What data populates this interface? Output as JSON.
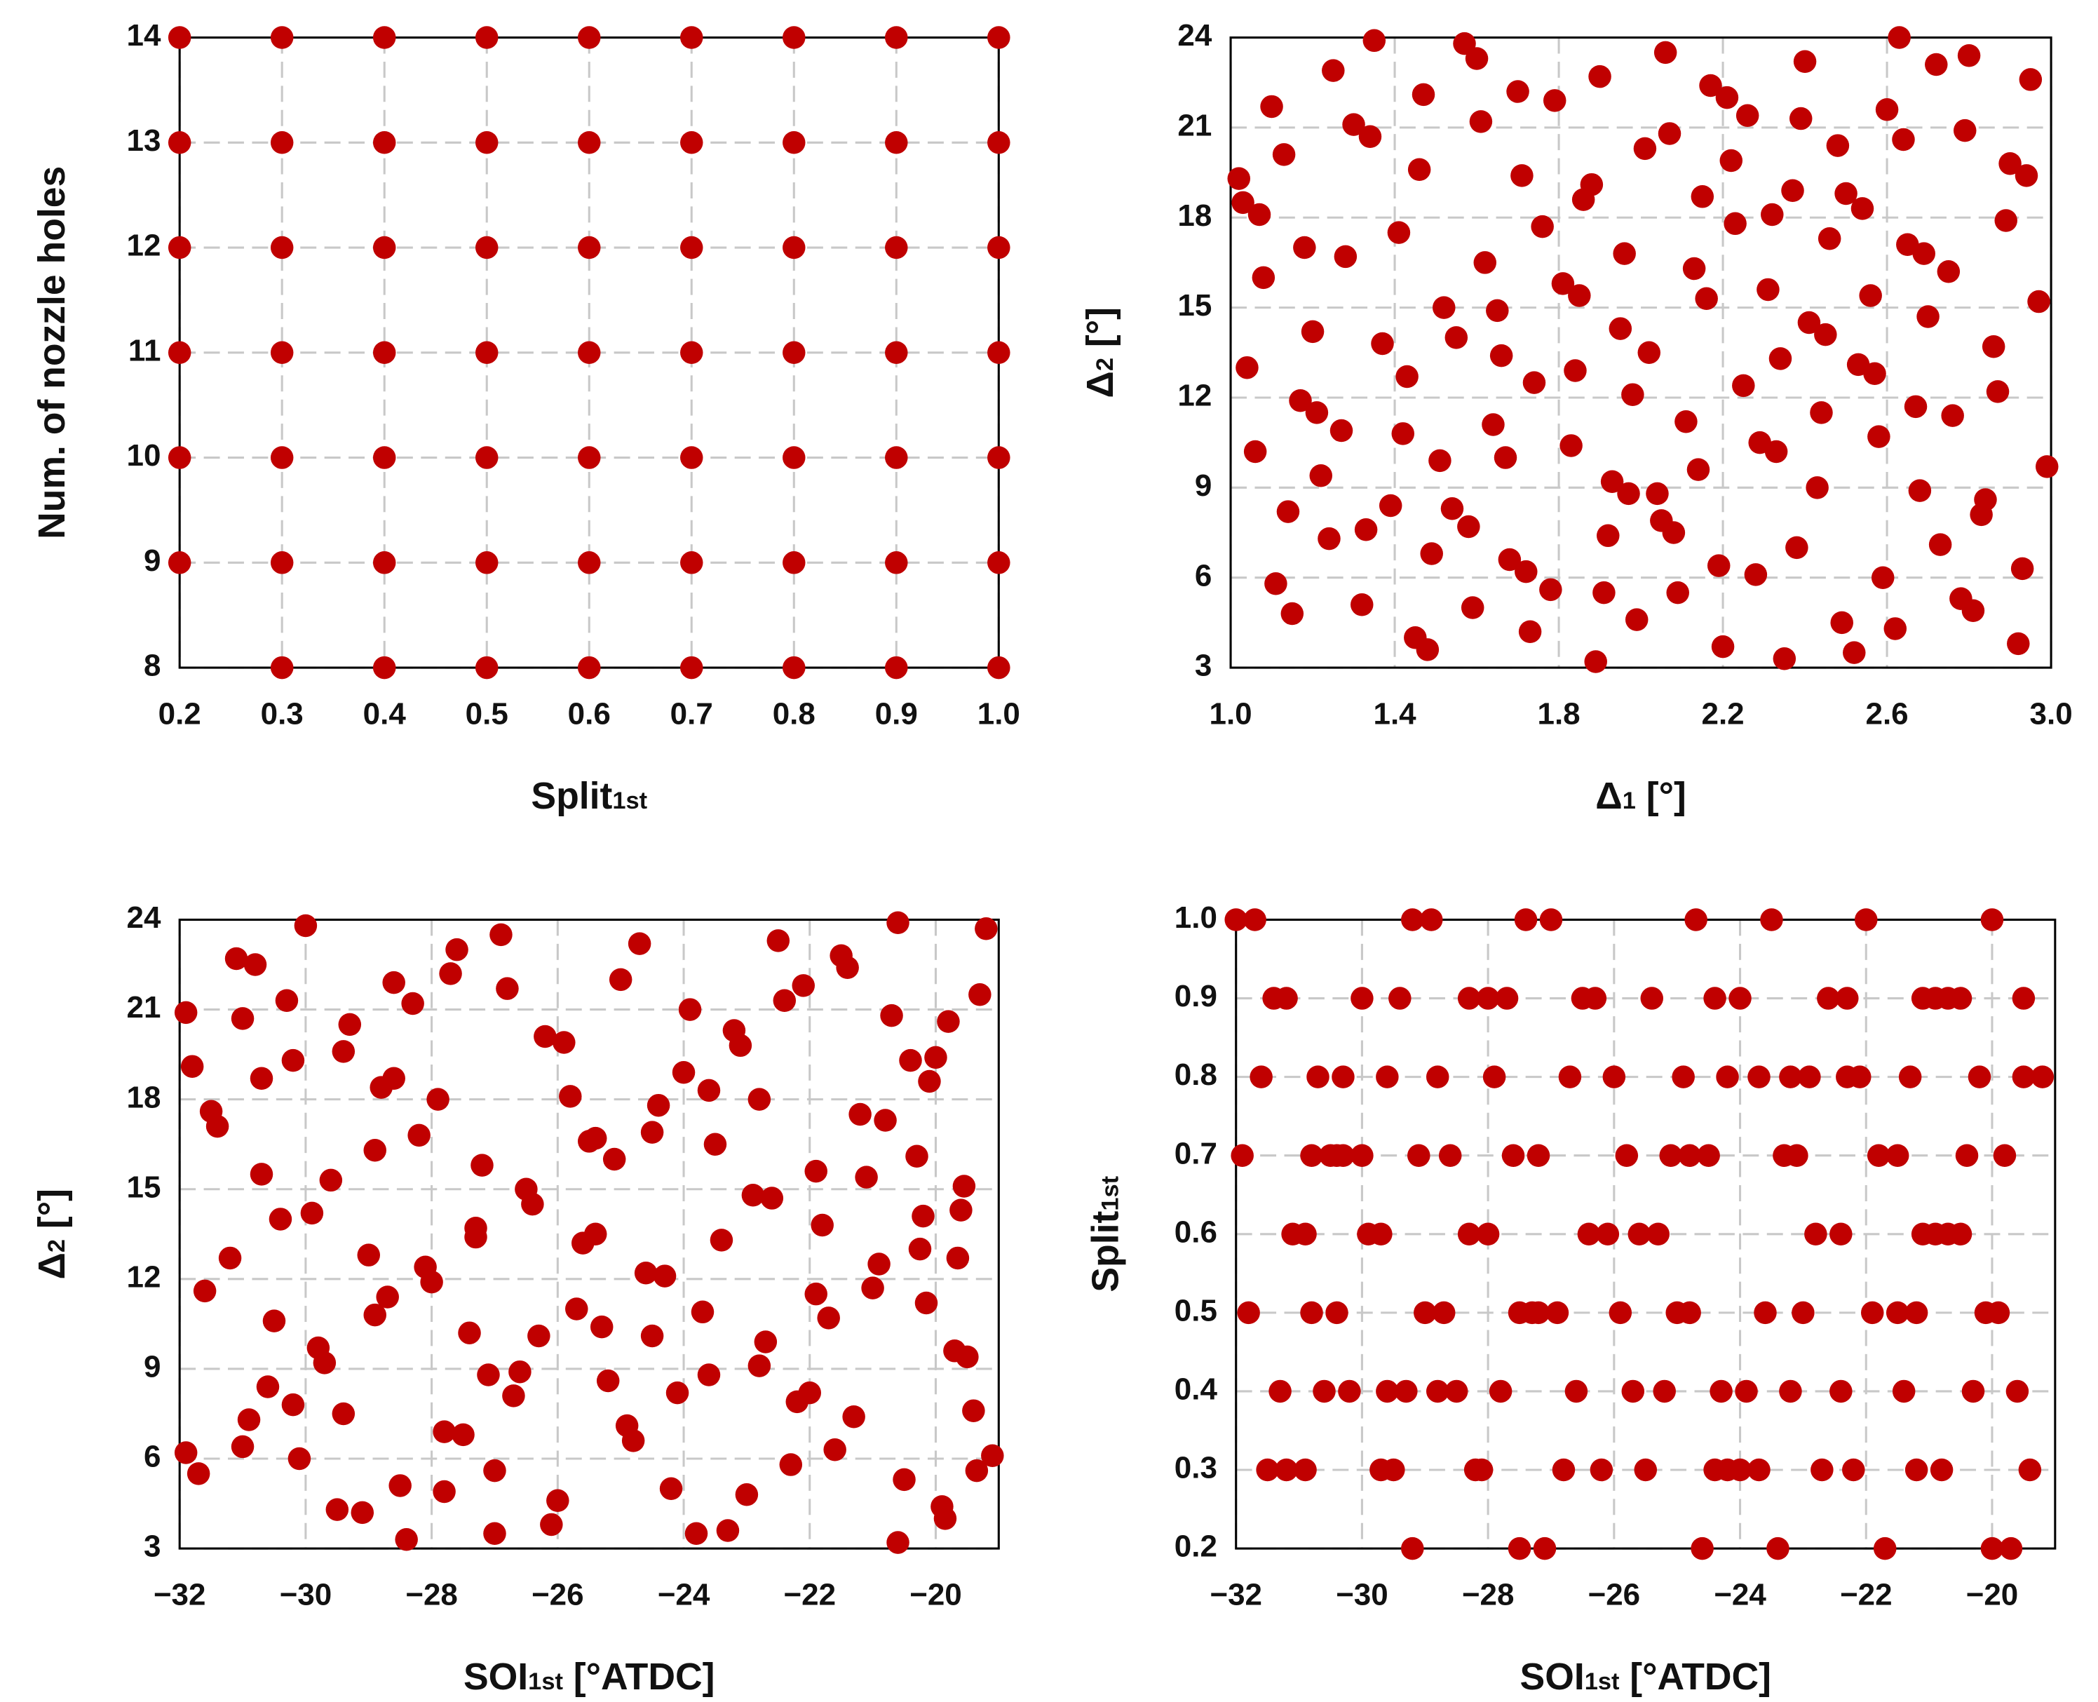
{
  "chart_data": [
    {
      "type": "scatter",
      "color": "#c00000",
      "grid": true,
      "xlabel": [
        {
          "text": "Split"
        },
        {
          "text": "1st",
          "sub": true
        }
      ],
      "ylabel": [
        {
          "text": "Num. of nozzle holes"
        }
      ],
      "xlim": [
        0.2,
        1
      ],
      "ylim": [
        8,
        14
      ],
      "xticks": [
        0.2,
        0.3,
        0.4,
        0.5,
        0.6,
        0.7,
        0.8,
        0.9,
        {
          "value": 1,
          "label": "1.0"
        }
      ],
      "yticks": [
        8,
        9,
        10,
        11,
        12,
        13,
        14
      ],
      "x": [
        0.2,
        0.2,
        0.2,
        0.2,
        0.2,
        0.2,
        0.3,
        0.3,
        0.3,
        0.3,
        0.3,
        0.3,
        0.3,
        0.4,
        0.4,
        0.4,
        0.4,
        0.4,
        0.4,
        0.4,
        0.5,
        0.5,
        0.5,
        0.5,
        0.5,
        0.5,
        0.5,
        0.6,
        0.6,
        0.6,
        0.6,
        0.6,
        0.6,
        0.6,
        0.7,
        0.7,
        0.7,
        0.7,
        0.7,
        0.7,
        0.7,
        0.8,
        0.8,
        0.8,
        0.8,
        0.8,
        0.8,
        0.8,
        0.9,
        0.9,
        0.9,
        0.9,
        0.9,
        0.9,
        0.9,
        1,
        1,
        1,
        1,
        1,
        1,
        1
      ],
      "y": [
        9,
        10,
        11,
        12,
        13,
        14,
        8,
        9,
        10,
        11,
        12,
        13,
        14,
        8,
        9,
        10,
        11,
        12,
        13,
        14,
        8,
        9,
        10,
        11,
        12,
        13,
        14,
        8,
        9,
        10,
        11,
        12,
        13,
        14,
        8,
        9,
        10,
        11,
        12,
        13,
        14,
        8,
        9,
        10,
        11,
        12,
        13,
        14,
        8,
        9,
        10,
        11,
        12,
        13,
        14,
        8,
        9,
        10,
        11,
        12,
        13,
        14
      ]
    },
    {
      "type": "scatter",
      "color": "#c00000",
      "grid": true,
      "xlabel": [
        {
          "text": "Δ"
        },
        {
          "text": "1",
          "sub": true
        },
        {
          "text": " [°]"
        }
      ],
      "ylabel": [
        {
          "text": "Δ"
        },
        {
          "text": "2",
          "sub": true
        },
        {
          "text": " [°]"
        }
      ],
      "xlim": [
        1,
        3
      ],
      "ylim": [
        3,
        24
      ],
      "xticks": [
        {
          "value": 1,
          "label": "1.0"
        },
        1.4,
        1.8,
        2.2,
        2.6,
        {
          "value": 3,
          "label": "3.0"
        }
      ],
      "yticks": [
        3,
        6,
        9,
        12,
        15,
        18,
        21,
        24
      ],
      "x": [
        1.02,
        1.03,
        1.04,
        1.06,
        1.07,
        1.08,
        1.1,
        1.11,
        1.13,
        1.14,
        1.15,
        1.17,
        1.18,
        1.2,
        1.21,
        1.22,
        1.24,
        1.25,
        1.27,
        1.28,
        1.3,
        1.32,
        1.33,
        1.34,
        1.35,
        1.37,
        1.39,
        1.41,
        1.42,
        1.43,
        1.45,
        1.46,
        1.47,
        1.48,
        1.49,
        1.51,
        1.52,
        1.54,
        1.55,
        1.57,
        1.58,
        1.59,
        1.6,
        1.61,
        1.62,
        1.64,
        1.65,
        1.66,
        1.67,
        1.68,
        1.7,
        1.71,
        1.72,
        1.73,
        1.74,
        1.76,
        1.78,
        1.79,
        1.81,
        1.83,
        1.84,
        1.85,
        1.86,
        1.88,
        1.89,
        1.9,
        1.91,
        1.92,
        1.93,
        1.95,
        1.96,
        1.97,
        1.98,
        1.99,
        2.01,
        2.02,
        2.04,
        2.05,
        2.06,
        2.07,
        2.08,
        2.09,
        2.11,
        2.13,
        2.14,
        2.15,
        2.16,
        2.17,
        2.19,
        2.2,
        2.21,
        2.22,
        2.23,
        2.25,
        2.26,
        2.28,
        2.29,
        2.31,
        2.32,
        2.33,
        2.34,
        2.35,
        2.37,
        2.38,
        2.39,
        2.4,
        2.41,
        2.43,
        2.44,
        2.45,
        2.46,
        2.48,
        2.49,
        2.5,
        2.52,
        2.53,
        2.54,
        2.56,
        2.57,
        2.58,
        2.59,
        2.6,
        2.62,
        2.63,
        2.64,
        2.65,
        2.67,
        2.68,
        2.69,
        2.7,
        2.72,
        2.73,
        2.75,
        2.76,
        2.78,
        2.79,
        2.8,
        2.81,
        2.83,
        2.84,
        2.86,
        2.87,
        2.89,
        2.9,
        2.92,
        2.93,
        2.94,
        2.95,
        2.97,
        2.99
      ],
      "y": [
        19.3,
        18.5,
        13.0,
        10.2,
        18.1,
        16.0,
        21.7,
        5.8,
        20.1,
        8.2,
        4.8,
        11.9,
        17.0,
        14.2,
        11.5,
        9.4,
        7.3,
        22.9,
        10.9,
        16.7,
        21.1,
        5.1,
        7.6,
        20.7,
        23.9,
        13.8,
        8.4,
        17.5,
        10.8,
        12.7,
        4.0,
        19.6,
        22.1,
        3.6,
        6.8,
        9.9,
        15.0,
        8.3,
        14.0,
        23.8,
        7.7,
        5.0,
        23.3,
        21.2,
        16.5,
        11.1,
        14.9,
        13.4,
        10.0,
        6.6,
        22.2,
        19.4,
        6.2,
        4.2,
        12.5,
        17.7,
        5.6,
        21.9,
        15.8,
        10.4,
        12.9,
        15.4,
        18.6,
        19.1,
        3.2,
        22.7,
        5.5,
        7.4,
        9.2,
        14.3,
        16.8,
        8.8,
        12.1,
        4.6,
        20.3,
        13.5,
        8.8,
        7.9,
        23.5,
        20.8,
        7.5,
        5.5,
        11.2,
        16.3,
        9.6,
        18.7,
        15.3,
        22.4,
        6.4,
        3.7,
        22.0,
        19.9,
        17.8,
        12.4,
        21.4,
        6.1,
        10.5,
        15.6,
        18.1,
        10.2,
        13.3,
        3.3,
        18.9,
        7.0,
        21.3,
        23.2,
        14.5,
        9.0,
        11.5,
        14.1,
        17.3,
        20.4,
        4.5,
        18.8,
        3.5,
        13.1,
        18.3,
        15.4,
        12.8,
        10.7,
        6.0,
        21.6,
        4.3,
        24.0,
        20.6,
        17.1,
        11.7,
        8.9,
        16.8,
        14.7,
        23.1,
        7.1,
        16.2,
        11.4,
        5.3,
        20.9,
        23.4,
        4.9,
        8.1,
        8.6,
        13.7,
        12.2,
        17.9,
        19.8,
        3.8,
        6.3,
        19.4,
        22.6,
        15.2,
        9.7
      ]
    },
    {
      "type": "scatter",
      "color": "#c00000",
      "grid": true,
      "xlabel": [
        {
          "text": "SOI"
        },
        {
          "text": "1st",
          "sub": true
        },
        {
          "text": " [°ATDC]"
        }
      ],
      "ylabel": [
        {
          "text": "Δ"
        },
        {
          "text": "2",
          "sub": true
        },
        {
          "text": " [°]"
        }
      ],
      "xlim": [
        -32,
        -19
      ],
      "ylim": [
        3,
        24
      ],
      "xticks": [
        {
          "value": -32,
          "label": "−32"
        },
        {
          "value": -30,
          "label": "−30"
        },
        {
          "value": -28,
          "label": "−28"
        },
        {
          "value": -26,
          "label": "−26"
        },
        {
          "value": -24,
          "label": "−24"
        },
        {
          "value": -22,
          "label": "−22"
        },
        {
          "value": -20,
          "label": "−20"
        }
      ],
      "yticks": [
        3,
        6,
        9,
        12,
        15,
        18,
        21,
        24
      ],
      "x": [
        -31.9,
        -31.9,
        -31.8,
        -31.7,
        -31.6,
        -31.5,
        -31.4,
        -31.2,
        -31.1,
        -31.0,
        -31.0,
        -30.9,
        -30.8,
        -30.7,
        -30.7,
        -30.6,
        -30.5,
        -30.4,
        -30.3,
        -30.2,
        -30.2,
        -30.1,
        -30.0,
        -29.9,
        -29.8,
        -29.7,
        -29.6,
        -29.5,
        -29.4,
        -29.4,
        -29.3,
        -29.1,
        -29.0,
        -28.9,
        -28.9,
        -28.8,
        -28.7,
        -28.6,
        -28.6,
        -28.5,
        -28.4,
        -28.3,
        -28.2,
        -28.1,
        -28.0,
        -27.9,
        -27.8,
        -27.8,
        -27.7,
        -27.6,
        -27.5,
        -27.4,
        -27.3,
        -27.3,
        -27.2,
        -27.1,
        -27.0,
        -27.0,
        -26.9,
        -26.8,
        -26.7,
        -26.6,
        -26.5,
        -26.4,
        -26.3,
        -26.2,
        -26.1,
        -26.0,
        -25.9,
        -25.8,
        -25.7,
        -25.6,
        -25.5,
        -25.4,
        -25.4,
        -25.3,
        -25.2,
        -25.1,
        -25.0,
        -24.9,
        -24.8,
        -24.7,
        -24.6,
        -24.5,
        -24.5,
        -24.4,
        -24.3,
        -24.2,
        -24.1,
        -24.0,
        -23.9,
        -23.8,
        -23.7,
        -23.6,
        -23.6,
        -23.5,
        -23.4,
        -23.3,
        -23.2,
        -23.1,
        -23.0,
        -22.9,
        -22.8,
        -22.8,
        -22.7,
        -22.6,
        -22.5,
        -22.4,
        -22.3,
        -22.2,
        -22.1,
        -22.0,
        -21.9,
        -21.9,
        -21.8,
        -21.7,
        -21.6,
        -21.5,
        -21.4,
        -21.3,
        -21.2,
        -21.1,
        -21.0,
        -20.9,
        -20.8,
        -20.7,
        -20.6,
        -20.6,
        -20.5,
        -20.4,
        -20.3,
        -20.25,
        -20.2,
        -20.15,
        -20.1,
        -20.0,
        -19.9,
        -19.85,
        -19.8,
        -19.7,
        -19.65,
        -19.6,
        -19.55,
        -19.5,
        -19.4,
        -19.35,
        -19.3,
        -19.2,
        -19.1
      ],
      "y": [
        20.9,
        6.2,
        19.1,
        5.5,
        11.6,
        17.6,
        17.1,
        12.7,
        22.7,
        20.7,
        6.4,
        7.3,
        22.5,
        15.5,
        18.7,
        8.4,
        10.6,
        14.0,
        21.3,
        19.3,
        7.8,
        6.0,
        23.8,
        14.2,
        9.7,
        9.2,
        15.3,
        4.3,
        7.5,
        19.6,
        20.5,
        4.2,
        12.8,
        10.8,
        16.3,
        18.4,
        11.4,
        18.7,
        21.9,
        5.1,
        3.3,
        21.2,
        16.8,
        12.4,
        11.9,
        18.0,
        6.9,
        4.9,
        22.2,
        23.0,
        6.8,
        10.2,
        13.4,
        13.7,
        15.8,
        8.8,
        5.6,
        3.5,
        23.5,
        21.7,
        8.1,
        8.9,
        15.0,
        14.5,
        10.1,
        20.1,
        3.8,
        4.6,
        19.9,
        18.1,
        11.0,
        13.2,
        16.6,
        13.5,
        16.7,
        10.4,
        8.6,
        16.0,
        22.0,
        7.1,
        6.6,
        23.2,
        12.2,
        10.1,
        16.9,
        17.8,
        12.1,
        5.0,
        8.2,
        18.9,
        21.0,
        3.5,
        10.9,
        8.8,
        18.3,
        16.5,
        13.3,
        3.6,
        20.3,
        19.8,
        4.8,
        14.8,
        18.0,
        9.1,
        9.9,
        14.7,
        23.3,
        21.3,
        5.8,
        7.9,
        21.8,
        8.2,
        11.5,
        15.6,
        13.8,
        10.7,
        6.3,
        22.8,
        22.4,
        7.4,
        17.5,
        15.4,
        11.7,
        12.5,
        17.3,
        20.8,
        3.2,
        23.9,
        5.3,
        19.3,
        16.1,
        13.0,
        14.1,
        11.2,
        18.6,
        19.4,
        4.4,
        4.0,
        20.6,
        9.6,
        12.7,
        14.3,
        15.1,
        9.4,
        7.6,
        5.6,
        21.5,
        23.7,
        6.1
      ]
    },
    {
      "type": "scatter",
      "color": "#c00000",
      "grid": true,
      "xlabel": [
        {
          "text": "SOI"
        },
        {
          "text": "1st",
          "sub": true
        },
        {
          "text": " [°ATDC]"
        }
      ],
      "ylabel": [
        {
          "text": "Split"
        },
        {
          "text": "1st",
          "sub": true
        }
      ],
      "xlim": [
        -32,
        -19
      ],
      "ylim": [
        0.2,
        1
      ],
      "xticks": [
        {
          "value": -32,
          "label": "−32"
        },
        {
          "value": -30,
          "label": "−30"
        },
        {
          "value": -28,
          "label": "−28"
        },
        {
          "value": -26,
          "label": "−26"
        },
        {
          "value": -24,
          "label": "−24"
        },
        {
          "value": -22,
          "label": "−22"
        },
        {
          "value": -20,
          "label": "−20"
        }
      ],
      "yticks": [
        0.2,
        0.3,
        0.4,
        0.5,
        0.6,
        0.7,
        0.8,
        0.9,
        {
          "value": 1,
          "label": "1.0"
        }
      ],
      "x": [
        -32.0,
        -31.7,
        -29.2,
        -28.9,
        -27.4,
        -27.0,
        -24.7,
        -23.5,
        -22.0,
        -20.0,
        -31.4,
        -31.2,
        -30.0,
        -29.4,
        -28.3,
        -28.0,
        -27.7,
        -26.5,
        -26.3,
        -25.4,
        -24.4,
        -24.0,
        -22.6,
        -22.3,
        -21.1,
        -20.9,
        -20.7,
        -20.5,
        -19.5,
        -31.6,
        -30.7,
        -30.3,
        -29.6,
        -28.8,
        -27.9,
        -26.7,
        -26.0,
        -24.9,
        -24.2,
        -23.7,
        -23.2,
        -22.9,
        -22.3,
        -22.1,
        -21.3,
        -20.2,
        -19.5,
        -19.2,
        -31.9,
        -30.8,
        -30.5,
        -30.4,
        -30.3,
        -30.0,
        -29.1,
        -28.6,
        -27.6,
        -27.2,
        -25.8,
        -25.1,
        -24.8,
        -24.5,
        -23.3,
        -23.1,
        -21.8,
        -21.5,
        -20.4,
        -19.8,
        -31.1,
        -30.9,
        -29.9,
        -29.7,
        -28.3,
        -28.0,
        -26.4,
        -26.1,
        -25.6,
        -25.3,
        -22.8,
        -22.4,
        -21.1,
        -20.9,
        -20.7,
        -20.5,
        -31.8,
        -30.8,
        -30.4,
        -29.0,
        -28.7,
        -27.5,
        -27.3,
        -27.2,
        -26.9,
        -25.9,
        -25.0,
        -24.8,
        -23.6,
        -23.0,
        -21.9,
        -21.5,
        -21.2,
        -20.1,
        -19.9,
        -31.3,
        -30.6,
        -30.2,
        -29.6,
        -29.3,
        -28.8,
        -28.5,
        -27.8,
        -26.6,
        -25.7,
        -25.2,
        -24.3,
        -23.9,
        -23.2,
        -22.4,
        -21.4,
        -20.3,
        -19.6,
        -31.5,
        -31.2,
        -30.9,
        -29.7,
        -29.5,
        -28.2,
        -28.1,
        -26.8,
        -26.2,
        -25.5,
        -24.4,
        -24.2,
        -24.0,
        -23.7,
        -22.7,
        -22.2,
        -21.2,
        -20.8,
        -19.4,
        -29.2,
        -27.5,
        -27.1,
        -24.6,
        -23.4,
        -21.7,
        -20.0,
        -19.7
      ],
      "y": [
        1,
        1,
        1,
        1,
        1,
        1,
        1,
        1,
        1,
        1,
        0.9,
        0.9,
        0.9,
        0.9,
        0.9,
        0.9,
        0.9,
        0.9,
        0.9,
        0.9,
        0.9,
        0.9,
        0.9,
        0.9,
        0.9,
        0.9,
        0.9,
        0.9,
        0.9,
        0.8,
        0.8,
        0.8,
        0.8,
        0.8,
        0.8,
        0.8,
        0.8,
        0.8,
        0.8,
        0.8,
        0.8,
        0.8,
        0.8,
        0.8,
        0.8,
        0.8,
        0.8,
        0.8,
        0.7,
        0.7,
        0.7,
        0.7,
        0.7,
        0.7,
        0.7,
        0.7,
        0.7,
        0.7,
        0.7,
        0.7,
        0.7,
        0.7,
        0.7,
        0.7,
        0.7,
        0.7,
        0.7,
        0.7,
        0.6,
        0.6,
        0.6,
        0.6,
        0.6,
        0.6,
        0.6,
        0.6,
        0.6,
        0.6,
        0.6,
        0.6,
        0.6,
        0.6,
        0.6,
        0.6,
        0.5,
        0.5,
        0.5,
        0.5,
        0.5,
        0.5,
        0.5,
        0.5,
        0.5,
        0.5,
        0.5,
        0.5,
        0.5,
        0.5,
        0.5,
        0.5,
        0.5,
        0.5,
        0.5,
        0.4,
        0.4,
        0.4,
        0.4,
        0.4,
        0.4,
        0.4,
        0.4,
        0.4,
        0.4,
        0.4,
        0.4,
        0.4,
        0.4,
        0.4,
        0.4,
        0.4,
        0.4,
        0.3,
        0.3,
        0.3,
        0.3,
        0.3,
        0.3,
        0.3,
        0.3,
        0.3,
        0.3,
        0.3,
        0.3,
        0.3,
        0.3,
        0.3,
        0.3,
        0.3,
        0.3,
        0.3,
        0.2,
        0.2,
        0.2,
        0.2,
        0.2,
        0.2,
        0.2,
        0.2
      ]
    }
  ]
}
